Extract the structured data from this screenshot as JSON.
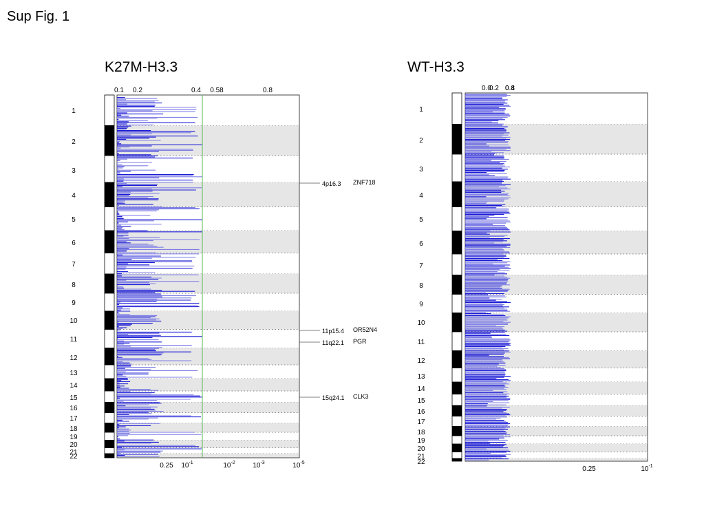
{
  "figure": {
    "title": "Sup Fig. 1"
  },
  "chart_data": [
    {
      "type": "bar",
      "title": "K27M-H3.3",
      "orientation": "horizontal",
      "top_ticks": [
        "0.1",
        "0.2",
        "0.4",
        "0.58",
        "0.8"
      ],
      "bottom_ticks": [
        {
          "label": "0.25"
        },
        {
          "label": "10",
          "sup": "-1"
        },
        {
          "label": "10",
          "sup": "-2"
        },
        {
          "label": "10",
          "sup": "-3"
        },
        {
          "label": "10",
          "sup": "-5"
        }
      ],
      "threshold": 0.58,
      "chromosome_labels": [
        "1",
        "2",
        "3",
        "4",
        "5",
        "6",
        "7",
        "8",
        "9",
        "10",
        "11",
        "12",
        "13",
        "14",
        "15",
        "16",
        "17",
        "18",
        "19",
        "20",
        "21",
        "22"
      ],
      "annotations": [
        {
          "locus": "4p16.3",
          "gene": "ZNF718"
        },
        {
          "locus": "11p15.4",
          "gene": "OR52N4"
        },
        {
          "locus": "11q22.1",
          "gene": "PGR"
        },
        {
          "locus": "15q24.1",
          "gene": "CLK3"
        }
      ]
    },
    {
      "type": "bar",
      "title": "WT-H3.3",
      "orientation": "horizontal",
      "top_ticks": [
        "0.0",
        "0.2",
        "0.4",
        "0.8"
      ],
      "bottom_ticks": [
        {
          "label": "0.25"
        },
        {
          "label": "10",
          "sup": "-1"
        }
      ],
      "chromosome_labels": [
        "1",
        "2",
        "3",
        "4",
        "5",
        "6",
        "7",
        "8",
        "9",
        "10",
        "11",
        "12",
        "13",
        "14",
        "15",
        "16",
        "17",
        "18",
        "19",
        "20",
        "21",
        "22"
      ],
      "annotations": []
    }
  ],
  "colors": {
    "bar": "#1a1ad6",
    "bar_light": "#7f7fe6",
    "threshold": "#58b85b",
    "band": "#e6e6e6"
  }
}
